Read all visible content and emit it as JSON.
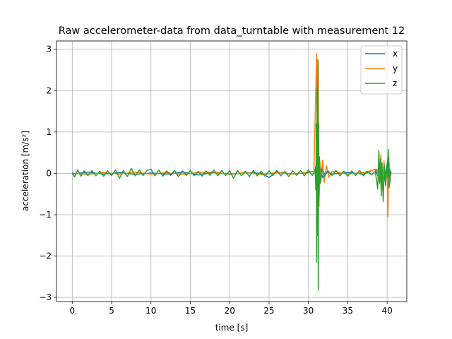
{
  "chart_data": {
    "type": "line",
    "title": "Raw accelerometer-data from data_turntable with measurement 12",
    "xlabel": "time [s]",
    "ylabel": "acceleration [m/s²]",
    "xlim": [
      -2,
      42.5
    ],
    "ylim": [
      -3.1,
      3.2
    ],
    "x_ticks": [
      0,
      5,
      10,
      15,
      20,
      25,
      30,
      35,
      40
    ],
    "x_tick_labels": [
      "0",
      "5",
      "10",
      "15",
      "20",
      "25",
      "30",
      "35",
      "40"
    ],
    "y_ticks": [
      -3,
      -2,
      -1,
      0,
      1,
      2,
      3
    ],
    "y_tick_labels": [
      "−3",
      "−2",
      "−1",
      "0",
      "1",
      "2",
      "3"
    ],
    "grid": true,
    "legend_position": "upper right",
    "series": [
      {
        "name": "x",
        "color": "#1f77b4",
        "x": [
          0,
          2,
          4,
          6,
          8,
          10,
          12,
          14,
          16,
          18,
          20,
          22,
          24,
          25,
          26,
          28,
          30,
          30.8,
          31.0,
          31.1,
          31.2,
          31.3,
          31.5,
          31.8,
          32.2,
          33,
          35,
          37,
          38.5,
          39.0,
          39.3,
          39.6,
          39.9,
          40.1,
          40.3,
          40.5
        ],
        "values": [
          -0.02,
          0.03,
          -0.02,
          0.02,
          -0.03,
          0.01,
          -0.02,
          0.03,
          -0.04,
          0.02,
          -0.03,
          0.02,
          0.0,
          -0.1,
          0.03,
          -0.02,
          0.02,
          0.05,
          0.2,
          -0.3,
          0.4,
          -0.2,
          0.15,
          -0.1,
          0.05,
          -0.02,
          0.02,
          -0.02,
          0.1,
          -0.15,
          0.2,
          -0.2,
          0.1,
          0.35,
          -0.3,
          0.05
        ]
      },
      {
        "name": "y",
        "color": "#ff7f0e",
        "x": [
          0,
          2,
          4,
          6,
          8,
          10,
          12,
          14,
          16,
          18,
          20,
          22,
          24,
          26,
          28,
          30,
          30.7,
          30.95,
          31.05,
          31.15,
          31.25,
          31.35,
          31.45,
          31.6,
          31.8,
          32.0,
          32.3,
          32.6,
          33,
          35,
          37,
          38.7,
          39.0,
          39.2,
          39.4,
          39.6,
          39.8,
          40.0,
          40.1,
          40.2,
          40.4
        ],
        "values": [
          0.01,
          -0.03,
          0.02,
          -0.02,
          0.03,
          -0.02,
          0.02,
          -0.03,
          0.02,
          0.03,
          -0.02,
          0.02,
          -0.03,
          0.02,
          -0.02,
          0.03,
          0.05,
          2.1,
          2.9,
          -1.2,
          2.7,
          -0.8,
          0.3,
          -0.2,
          0.32,
          -0.22,
          0.18,
          -0.1,
          0.05,
          -0.02,
          0.02,
          0.1,
          -0.2,
          0.45,
          -0.4,
          0.3,
          -0.2,
          0.1,
          -1.05,
          0.4,
          -0.1
        ]
      },
      {
        "name": "z",
        "color": "#2ca02c",
        "x": [
          0,
          0.3,
          0.7,
          1.1,
          1.5,
          2,
          2.5,
          3,
          3.5,
          4,
          4.5,
          5,
          5.5,
          6,
          6.5,
          7,
          7.5,
          8,
          8.5,
          9,
          9.5,
          10,
          10.5,
          11,
          11.5,
          12,
          12.5,
          13,
          13.5,
          14,
          14.5,
          15,
          15.5,
          16,
          16.5,
          17,
          17.5,
          18,
          18.5,
          19,
          19.5,
          20,
          20.5,
          21,
          21.5,
          22,
          22.5,
          23,
          23.5,
          24,
          24.5,
          25,
          25.5,
          26,
          26.5,
          27,
          27.5,
          28,
          28.5,
          29,
          29.5,
          30,
          30.5,
          30.85,
          30.95,
          31.0,
          31.05,
          31.1,
          31.15,
          31.2,
          31.25,
          31.3,
          31.35,
          31.4,
          31.5,
          31.7,
          32.0,
          32.5,
          33,
          33.5,
          34,
          34.5,
          35,
          35.5,
          36,
          36.5,
          37,
          37.5,
          38,
          38.5,
          38.8,
          38.95,
          39.05,
          39.15,
          39.25,
          39.35,
          39.5,
          39.65,
          39.8,
          39.95,
          40.05,
          40.15,
          40.25,
          40.35,
          40.45
        ],
        "values": [
          0.02,
          -0.09,
          0.08,
          -0.07,
          0.06,
          -0.05,
          0.07,
          -0.06,
          0.05,
          -0.07,
          0.06,
          -0.05,
          0.08,
          -0.12,
          0.07,
          -0.08,
          0.12,
          -0.06,
          0.08,
          -0.05,
          0.07,
          0.1,
          -0.06,
          0.08,
          -0.07,
          0.06,
          -0.05,
          0.07,
          -0.08,
          0.06,
          -0.05,
          0.07,
          -0.06,
          0.05,
          -0.07,
          0.06,
          -0.05,
          0.08,
          -0.06,
          0.07,
          -0.05,
          0.06,
          -0.12,
          0.07,
          -0.06,
          0.05,
          -0.08,
          0.07,
          -0.06,
          0.05,
          -0.07,
          0.06,
          -0.05,
          0.07,
          -0.06,
          0.05,
          -0.08,
          0.06,
          -0.05,
          0.07,
          -0.06,
          0.08,
          -0.05,
          0.06,
          -0.4,
          1.2,
          -2.15,
          2.05,
          -1.5,
          2.75,
          -2.82,
          1.2,
          -0.55,
          0.4,
          -0.25,
          0.12,
          -0.08,
          0.06,
          -0.05,
          0.07,
          -0.06,
          0.05,
          -0.07,
          0.06,
          -0.05,
          0.07,
          -0.06,
          0.05,
          -0.04,
          0.05,
          -0.38,
          0.55,
          -0.25,
          0.35,
          -0.55,
          0.25,
          -0.68,
          0.2,
          -0.3,
          0.15,
          -0.1,
          0.58,
          -0.35,
          0.1,
          -0.05
        ]
      }
    ]
  }
}
